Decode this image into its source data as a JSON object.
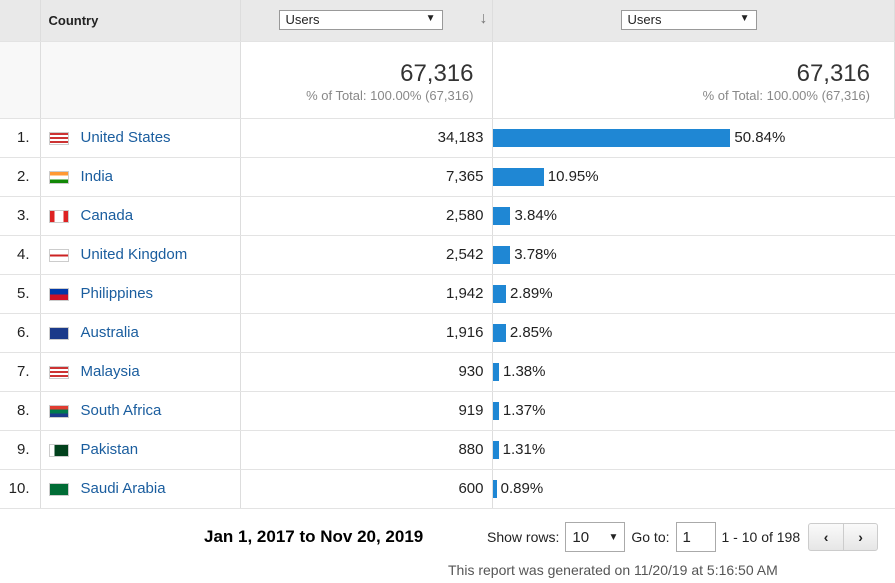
{
  "header": {
    "country": "Country",
    "metric1": "Users",
    "metric2": "Users"
  },
  "totals": {
    "value": "67,316",
    "pct": "% of Total: 100.00% (67,316)",
    "value2": "67,316",
    "pct2": "% of Total: 100.00% (67,316)"
  },
  "rows": [
    {
      "idx": "1.",
      "country": "United States",
      "users": "34,183",
      "pct": "50.84%",
      "p": 50.84,
      "flag": "us"
    },
    {
      "idx": "2.",
      "country": "India",
      "users": "7,365",
      "pct": "10.95%",
      "p": 10.95,
      "flag": "in"
    },
    {
      "idx": "3.",
      "country": "Canada",
      "users": "2,580",
      "pct": "3.84%",
      "p": 3.84,
      "flag": "ca"
    },
    {
      "idx": "4.",
      "country": "United Kingdom",
      "users": "2,542",
      "pct": "3.78%",
      "p": 3.78,
      "flag": "gb"
    },
    {
      "idx": "5.",
      "country": "Philippines",
      "users": "1,942",
      "pct": "2.89%",
      "p": 2.89,
      "flag": "ph"
    },
    {
      "idx": "6.",
      "country": "Australia",
      "users": "1,916",
      "pct": "2.85%",
      "p": 2.85,
      "flag": "au"
    },
    {
      "idx": "7.",
      "country": "Malaysia",
      "users": "930",
      "pct": "1.38%",
      "p": 1.38,
      "flag": "my"
    },
    {
      "idx": "8.",
      "country": "South Africa",
      "users": "919",
      "pct": "1.37%",
      "p": 1.37,
      "flag": "za"
    },
    {
      "idx": "9.",
      "country": "Pakistan",
      "users": "880",
      "pct": "1.31%",
      "p": 1.31,
      "flag": "pk"
    },
    {
      "idx": "10.",
      "country": "Saudi Arabia",
      "users": "600",
      "pct": "0.89%",
      "p": 0.89,
      "flag": "sa"
    }
  ],
  "footer": {
    "date_range": "Jan 1, 2017 to Nov 20, 2019",
    "show_rows_label": "Show rows:",
    "show_rows": "10",
    "goto_label": "Go to:",
    "goto": "1",
    "range": "1 - 10 of 198",
    "prev": "‹",
    "next": "›",
    "generated": "This report was generated on 11/20/19 at 5:16:50 AM"
  },
  "colors": {
    "bar": "#1f87d4",
    "link": "#1a5d9e"
  }
}
